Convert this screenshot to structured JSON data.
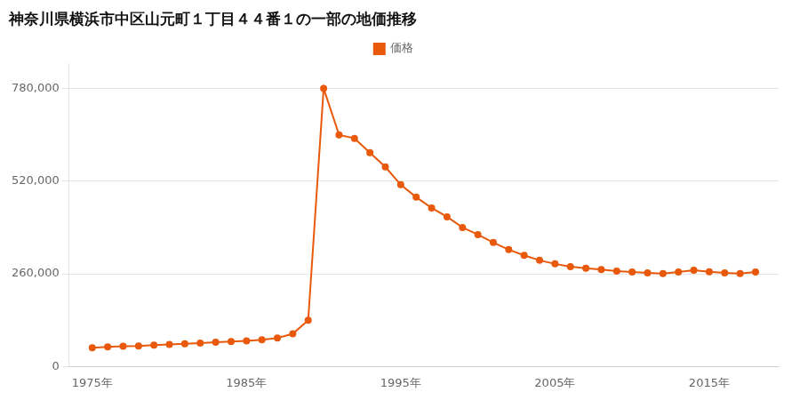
{
  "chart_data": {
    "type": "line",
    "title": "神奈川県横浜市中区山元町１丁目４４番１の一部の地価推移",
    "x": [
      1975,
      1976,
      1977,
      1978,
      1979,
      1980,
      1981,
      1982,
      1983,
      1984,
      1985,
      1986,
      1987,
      1988,
      1989,
      1990,
      1991,
      1992,
      1993,
      1994,
      1995,
      1996,
      1997,
      1998,
      1999,
      2000,
      2001,
      2002,
      2003,
      2004,
      2005,
      2006,
      2007,
      2008,
      2009,
      2010,
      2011,
      2012,
      2013,
      2014,
      2015,
      2016,
      2017,
      2018
    ],
    "series": [
      {
        "name": "価格",
        "color": "#E8590C",
        "marker": "circle",
        "line_style": "solid",
        "values": [
          53000,
          55000,
          57000,
          58000,
          60000,
          62000,
          64000,
          66000,
          68000,
          70000,
          72000,
          75000,
          80000,
          92000,
          130000,
          780000,
          650000,
          640000,
          600000,
          560000,
          510000,
          475000,
          445000,
          420000,
          390000,
          370000,
          348000,
          328000,
          312000,
          298000,
          288000,
          280000,
          276000,
          272000,
          268000,
          265000,
          263000,
          261000,
          265000,
          270000,
          266000,
          263000,
          261000,
          265000
        ]
      }
    ],
    "xlim": [
      1973.5,
      2019.5
    ],
    "xticks": [
      {
        "value": 1975,
        "label": "1975年"
      },
      {
        "value": 1985,
        "label": "1985年"
      },
      {
        "value": 1995,
        "label": "1995年"
      },
      {
        "value": 2005,
        "label": "2005年"
      },
      {
        "value": 2015,
        "label": "2015年"
      }
    ],
    "ylim": [
      0,
      850000
    ],
    "yticks": [
      0,
      {
        "value": 260000,
        "label": "260,000"
      },
      {
        "value": 520000,
        "label": "520,000"
      },
      {
        "value": 780000,
        "label": "780,000"
      }
    ],
    "grid": "y",
    "legend": "top"
  }
}
